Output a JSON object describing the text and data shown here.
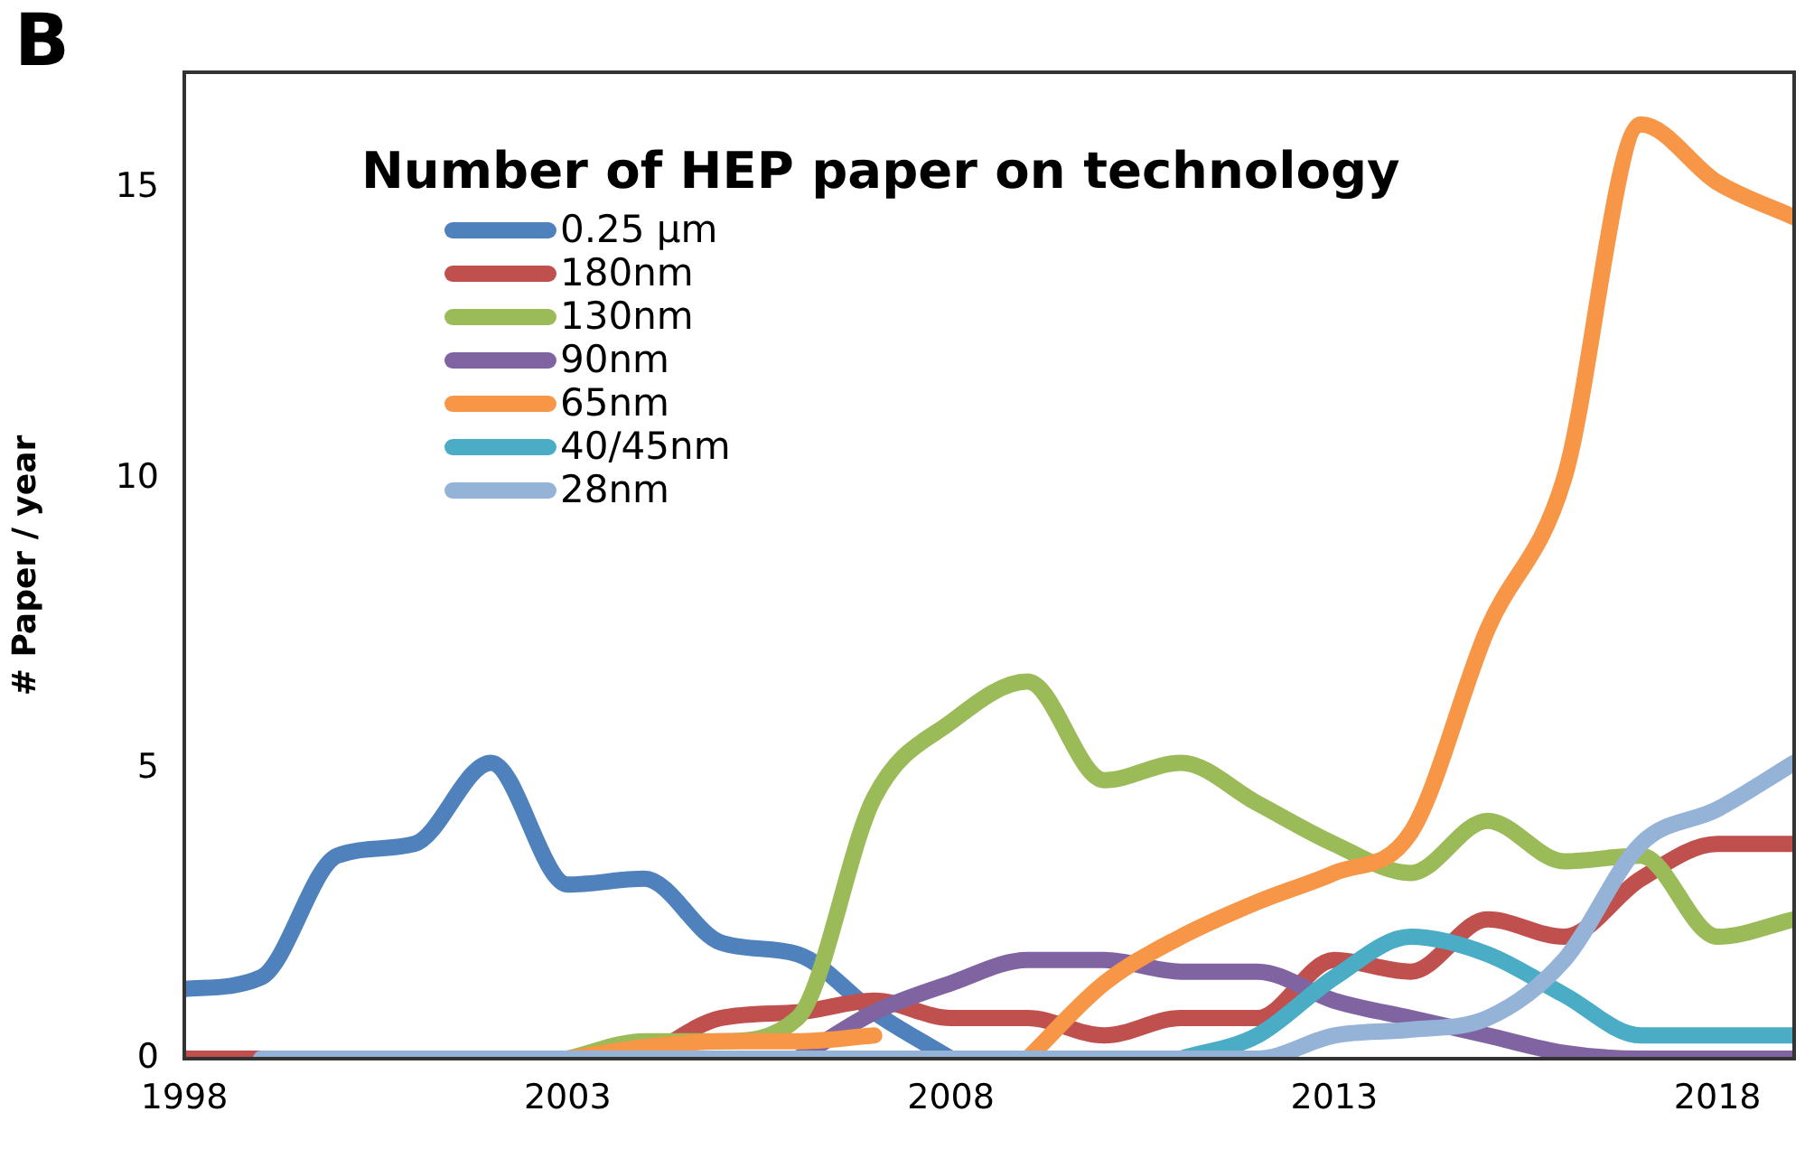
{
  "chart_data": {
    "type": "line",
    "title": "Number of HEP paper on technology",
    "ylabel": "# Paper / year",
    "annotations": [
      "B"
    ],
    "x": [
      1998,
      1999,
      2000,
      2001,
      2002,
      2003,
      2004,
      2005,
      2006,
      2007,
      2008,
      2009,
      2010,
      2011,
      2012,
      2013,
      2014,
      2015,
      2016,
      2017,
      2018,
      2019
    ],
    "series": [
      {
        "name": "0.25 µm",
        "color": "#4f81bd",
        "values": [
          1.2,
          1.4,
          3.5,
          3.7,
          5.1,
          3.0,
          3.1,
          2.0,
          1.8,
          0.8,
          0,
          null,
          null,
          null,
          null,
          null,
          null,
          null,
          null,
          null,
          null,
          null
        ]
      },
      {
        "name": "180nm",
        "color": "#c0504d",
        "values": [
          0,
          0,
          null,
          null,
          null,
          null,
          0,
          0.7,
          0.8,
          1.0,
          0.7,
          0.7,
          0.4,
          0.7,
          0.7,
          1.7,
          1.5,
          2.4,
          2.1,
          3.1,
          3.7,
          3.7
        ]
      },
      {
        "name": "130nm",
        "color": "#9bbb59",
        "values": [
          null,
          null,
          null,
          null,
          null,
          0,
          0.3,
          0.3,
          0.7,
          4.5,
          5.8,
          6.5,
          4.8,
          5.1,
          4.4,
          3.7,
          3.2,
          4.1,
          3.4,
          3.5,
          2.1,
          2.4
        ]
      },
      {
        "name": "90nm",
        "color": "#8064a2",
        "values": [
          null,
          null,
          null,
          null,
          null,
          null,
          null,
          null,
          0,
          0.8,
          1.3,
          1.7,
          1.7,
          1.5,
          1.5,
          1.0,
          0.7,
          0.4,
          0.1,
          0,
          0,
          0
        ]
      },
      {
        "name": "65nm",
        "color": "#f79646",
        "values": [
          null,
          null,
          null,
          null,
          null,
          0,
          0.2,
          0.3,
          0.3,
          0.4,
          null,
          0,
          1.3,
          2.1,
          2.7,
          3.2,
          3.9,
          7.4,
          10.0,
          16.1,
          15.1,
          14.5
        ]
      },
      {
        "name": "40/45nm",
        "color": "#4bacc6",
        "values": [
          null,
          null,
          null,
          null,
          null,
          null,
          null,
          null,
          null,
          null,
          null,
          null,
          null,
          0,
          0.4,
          1.4,
          2.1,
          1.8,
          1.1,
          0.4,
          0.4,
          0.4
        ]
      },
      {
        "name": "28nm",
        "color": "#95b3d7",
        "values": [
          null,
          0,
          0,
          0,
          0,
          0,
          0,
          0,
          0,
          0,
          0,
          0,
          0,
          0,
          0,
          0.4,
          0.5,
          0.7,
          1.7,
          3.7,
          4.3,
          5.1
        ]
      }
    ],
    "xlim": [
      1998,
      2019
    ],
    "xticks": [
      1998,
      2003,
      2008,
      2013,
      2018
    ],
    "ylim": [
      0,
      17
    ],
    "yticks": [
      0,
      5,
      10,
      15
    ],
    "grid": false,
    "legend": "top left",
    "marker": "none"
  }
}
